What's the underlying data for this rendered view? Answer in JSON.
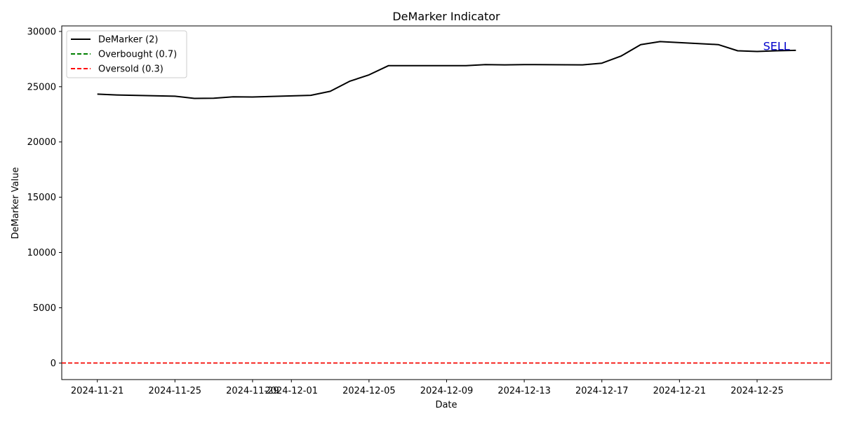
{
  "chart_data": {
    "type": "line",
    "title": "DeMarker Indicator",
    "xlabel": "Date",
    "ylabel": "DeMarker Value",
    "xlim": [
      "2024-11-19T04:00",
      "2024-12-28T20:00"
    ],
    "ylim": [
      -1500,
      30500
    ],
    "yticks": [
      0,
      5000,
      10000,
      15000,
      20000,
      25000,
      30000
    ],
    "xticks": [
      "2024-11-21",
      "2024-11-25",
      "2024-11-29",
      "2024-12-01",
      "2024-12-05",
      "2024-12-09",
      "2024-12-13",
      "2024-12-17",
      "2024-12-21",
      "2024-12-25"
    ],
    "grid": false,
    "legend_position": "top-left",
    "series": [
      {
        "name": "DeMarker (2)",
        "color": "#000000",
        "style": "solid",
        "x": [
          "2024-11-21",
          "2024-11-22",
          "2024-11-25",
          "2024-11-26",
          "2024-11-27",
          "2024-11-28",
          "2024-11-29",
          "2024-12-02",
          "2024-12-03",
          "2024-12-04",
          "2024-12-05",
          "2024-12-06",
          "2024-12-09",
          "2024-12-10",
          "2024-12-11",
          "2024-12-12",
          "2024-12-13",
          "2024-12-16",
          "2024-12-17",
          "2024-12-18",
          "2024-12-19",
          "2024-12-20",
          "2024-12-23",
          "2024-12-24",
          "2024-12-25",
          "2024-12-26",
          "2024-12-27"
        ],
        "values": [
          24330,
          24250,
          24140,
          23940,
          23960,
          24080,
          24070,
          24220,
          24580,
          25490,
          26070,
          26900,
          26910,
          26910,
          27000,
          26980,
          27000,
          26980,
          27130,
          27780,
          28800,
          29080,
          28810,
          28250,
          28190,
          28250,
          28290
        ]
      },
      {
        "name": "Overbought (0.7)",
        "color": "#008000",
        "style": "dashed",
        "constant": 0.7
      },
      {
        "name": "Oversold (0.3)",
        "color": "#ff0000",
        "style": "dashed",
        "constant": 0.3
      }
    ],
    "annotations": [
      {
        "text": "SELL",
        "x": "2024-12-26",
        "y": 28700,
        "color": "#0000cc"
      }
    ]
  }
}
